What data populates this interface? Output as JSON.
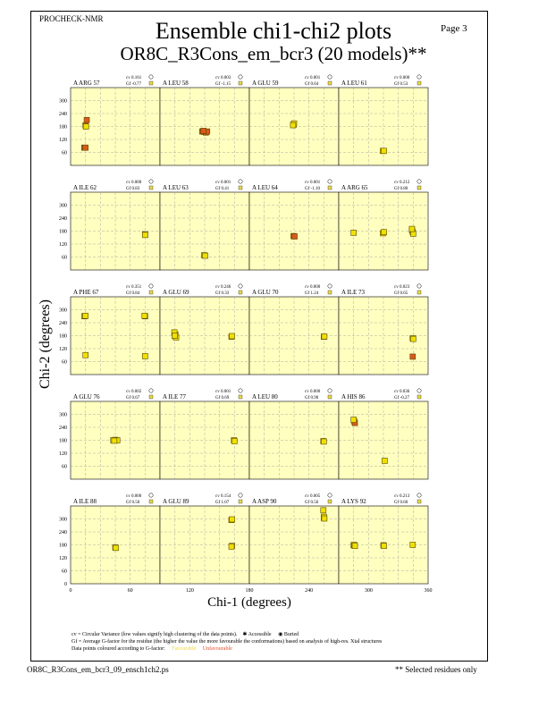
{
  "header": {
    "program": "PROCHECK-NMR",
    "page": "Page  3",
    "title_line1": "Ensemble chi1-chi2 plots",
    "title_line2": "OR8C_R3Cons_em_bcr3 (20 models)**"
  },
  "colors": {
    "panel_bg": "#ffffc0",
    "favourable": "#e8d84a",
    "unfavourable": "#c84a1a",
    "point_yellow": "#f0e000",
    "point_red": "#d85a1a"
  },
  "chart_data": {
    "type": "scatter",
    "xlabel": "Chi-1 (degrees)",
    "ylabel": "Chi-2 (degrees)",
    "xlim": [
      0,
      360
    ],
    "ylim": [
      0,
      360
    ],
    "xticks": [
      0,
      60,
      120,
      180,
      240,
      300,
      360
    ],
    "yticks": [
      60,
      120,
      180,
      240,
      300
    ],
    "grid": true,
    "panels": [
      {
        "residue": "A ARG 57",
        "cv": "cv 0.161",
        "gf": "Gf -0.77",
        "points": [
          [
            60,
            185,
            "red"
          ],
          [
            62,
            180,
            "yellow"
          ],
          [
            65,
            210,
            "red"
          ],
          [
            55,
            82,
            "red"
          ],
          [
            60,
            82,
            "red"
          ]
        ]
      },
      {
        "residue": "A LEU 58",
        "cv": "cv 0.003",
        "gf": "Gf -1.15",
        "points": [
          [
            170,
            157,
            "red"
          ],
          [
            178,
            155,
            "red"
          ],
          [
            185,
            152,
            "red"
          ],
          [
            190,
            157,
            "red"
          ],
          [
            175,
            160,
            "red"
          ]
        ]
      },
      {
        "residue": "A GLU 59",
        "cv": "cv 0.001",
        "gf": "Gf 0.64",
        "points": [
          [
            178,
            188,
            "yellow"
          ],
          [
            180,
            194,
            "yellow"
          ],
          [
            176,
            186,
            "yellow"
          ]
        ]
      },
      {
        "residue": "A LEU 61",
        "cv": "cv 0.000",
        "gf": "Gf 0.53",
        "points": [
          [
            178,
            67,
            "yellow"
          ],
          [
            182,
            67,
            "yellow"
          ]
        ]
      },
      {
        "residue": "A ILE 62",
        "cv": "cv 0.000",
        "gf": "Gf 0.83",
        "points": [
          [
            300,
            165,
            "yellow"
          ],
          [
            300,
            162,
            "yellow"
          ]
        ]
      },
      {
        "residue": "A LEU 63",
        "cv": "cv 0.001",
        "gf": "Gf 0.41",
        "points": [
          [
            178,
            68,
            "yellow"
          ],
          [
            182,
            66,
            "yellow"
          ]
        ]
      },
      {
        "residue": "A LEU 64",
        "cv": "cv 0.001",
        "gf": "Gf -1.10",
        "points": [
          [
            178,
            157,
            "red"
          ],
          [
            182,
            155,
            "red"
          ]
        ]
      },
      {
        "residue": "A ARG 65",
        "cv": "cv 0.212",
        "gf": "Gf 0.80",
        "points": [
          [
            60,
            172,
            "yellow"
          ],
          [
            178,
            170,
            "yellow"
          ],
          [
            182,
            175,
            "yellow"
          ],
          [
            295,
            185,
            "yellow"
          ],
          [
            298,
            175,
            "yellow"
          ],
          [
            300,
            168,
            "yellow"
          ],
          [
            295,
            190,
            "yellow"
          ]
        ]
      },
      {
        "residue": "A PHE 67",
        "cv": "cv 0.351",
        "gf": "Gf 0.84",
        "points": [
          [
            55,
            270,
            "yellow"
          ],
          [
            60,
            272,
            "yellow"
          ],
          [
            300,
            270,
            "yellow"
          ],
          [
            298,
            272,
            "yellow"
          ],
          [
            60,
            90,
            "yellow"
          ],
          [
            300,
            85,
            "yellow"
          ]
        ]
      },
      {
        "residue": "A GLU 69",
        "cv": "cv 0.246",
        "gf": "Gf 0.33",
        "points": [
          [
            60,
            178,
            "yellow"
          ],
          [
            62,
            185,
            "yellow"
          ],
          [
            65,
            172,
            "yellow"
          ],
          [
            58,
            195,
            "yellow"
          ],
          [
            60,
            180,
            "yellow"
          ],
          [
            288,
            175,
            "yellow"
          ],
          [
            290,
            178,
            "yellow"
          ]
        ]
      },
      {
        "residue": "A GLU 70",
        "cv": "cv 0.000",
        "gf": "Gf 1.24",
        "points": [
          [
            300,
            175,
            "yellow"
          ],
          [
            302,
            176,
            "yellow"
          ]
        ]
      },
      {
        "residue": "A ILE 73",
        "cv": "cv 0.023",
        "gf": "Gf 0.65",
        "points": [
          [
            298,
            168,
            "yellow"
          ],
          [
            300,
            165,
            "yellow"
          ],
          [
            298,
            83,
            "red"
          ]
        ]
      },
      {
        "residue": "A GLU 76",
        "cv": "cv 0.002",
        "gf": "Gf 0.67",
        "points": [
          [
            172,
            180,
            "yellow"
          ],
          [
            180,
            182,
            "yellow"
          ],
          [
            188,
            180,
            "yellow"
          ],
          [
            176,
            178,
            "yellow"
          ]
        ]
      },
      {
        "residue": "A ILE 77",
        "cv": "cv 0.001",
        "gf": "Gf 0.69",
        "points": [
          [
            298,
            180,
            "yellow"
          ],
          [
            300,
            176,
            "yellow"
          ]
        ]
      },
      {
        "residue": "A LEU 80",
        "cv": "cv 0.000",
        "gf": "Gf 0.90",
        "points": [
          [
            298,
            176,
            "yellow"
          ],
          [
            300,
            174,
            "yellow"
          ]
        ]
      },
      {
        "residue": "A HIS 86",
        "cv": "cv 0.036",
        "gf": "Gf -0.27",
        "points": [
          [
            62,
            268,
            "yellow"
          ],
          [
            65,
            260,
            "red"
          ],
          [
            60,
            275,
            "yellow"
          ],
          [
            185,
            85,
            "yellow"
          ]
        ]
      },
      {
        "residue": "A ILE 88",
        "cv": "cv 0.000",
        "gf": "Gf 0.50",
        "points": [
          [
            180,
            168,
            "yellow"
          ],
          [
            182,
            166,
            "yellow"
          ]
        ]
      },
      {
        "residue": "A GLU 89",
        "cv": "cv 0.154",
        "gf": "Gf 1.07",
        "points": [
          [
            288,
            295,
            "yellow"
          ],
          [
            290,
            298,
            "yellow"
          ],
          [
            290,
            175,
            "yellow"
          ],
          [
            288,
            172,
            "yellow"
          ]
        ]
      },
      {
        "residue": "A ASP 90",
        "cv": "cv 0.005",
        "gf": "Gf 0.56",
        "points": [
          [
            298,
            340,
            "yellow"
          ],
          [
            300,
            305,
            "yellow"
          ],
          [
            300,
            310,
            "yellow"
          ],
          [
            302,
            302,
            "yellow"
          ]
        ]
      },
      {
        "residue": "A LYS 92",
        "cv": "cv 0.213",
        "gf": "Gf 0.60",
        "points": [
          [
            60,
            178,
            "yellow"
          ],
          [
            62,
            180,
            "yellow"
          ],
          [
            65,
            175,
            "yellow"
          ],
          [
            180,
            178,
            "yellow"
          ],
          [
            182,
            175,
            "yellow"
          ],
          [
            298,
            180,
            "yellow"
          ]
        ]
      }
    ]
  },
  "legend": {
    "line1": "cv = Circular Variance (low values signify high clustering of the data points).",
    "accessible": "Accessible",
    "buried": "Buried",
    "line2": "Gf = Average G-factor for the residue (the higher the value the more favourable the conformations) based on analysis of high-res. Xtal structures",
    "line3": "Data points coloured according to G-factor:",
    "favourable": "Favourable",
    "unfavourable": "Unfavourable"
  },
  "footer": {
    "filename": "OR8C_R3Cons_em_bcr3_09_ensch1ch2.ps",
    "note": "** Selected residues only"
  }
}
